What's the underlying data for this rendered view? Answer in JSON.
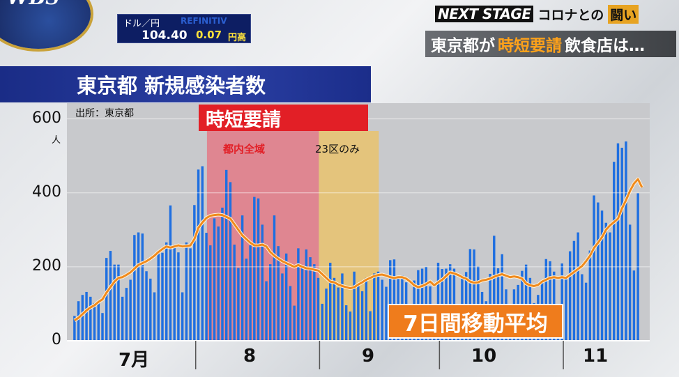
{
  "broadcaster": {
    "logo": "WBS"
  },
  "ticker": {
    "label": "ドル／円",
    "brand": "REFINITIV",
    "value": "104.40",
    "change": "0.07",
    "direction": "円高"
  },
  "segment": {
    "series": "NEXT STAGE",
    "topic": "コロナとの",
    "emphasis": "闘い"
  },
  "headline": {
    "prefix": "東京都が",
    "highlight": "時短要請",
    "suffix": "飲食店は…"
  },
  "chart_data": {
    "type": "bar",
    "title": "東京都 新規感染者数",
    "source": "出所：東京都",
    "ylabel": "人",
    "ylim": [
      0,
      620
    ],
    "yticks": [
      "0",
      "200",
      "400",
      "600"
    ],
    "xticks": [
      "7月",
      "8",
      "9",
      "10",
      "11"
    ],
    "xtick_days": [
      15,
      46,
      77,
      107,
      138
    ],
    "month_boundaries": [
      31,
      62,
      92,
      123
    ],
    "request": {
      "label": "時短要請",
      "periods": [
        {
          "label": "都内全域",
          "start_day": 34,
          "end_day": 62,
          "color": "#e86a78"
        },
        {
          "label": "23区のみ",
          "start_day": 62,
          "end_day": 77,
          "color": "#f0c25a"
        }
      ]
    },
    "moving_average_label": "7日間移動平均",
    "series": [
      {
        "kind": "daily",
        "values": [
          67,
          107,
          124,
          132,
          119,
          102,
          106,
          75,
          224,
          243,
          206,
          206,
          119,
          143,
          165,
          286,
          293,
          290,
          188,
          168,
          131,
          237,
          238,
          266,
          366,
          260,
          239,
          131,
          266,
          250,
          367,
          463,
          472,
          292,
          258,
          331,
          309,
          360,
          462,
          429,
          260,
          197,
          339,
          222,
          258,
          389,
          385,
          314,
          161,
          207,
          339,
          256,
          182,
          236,
          148,
          95,
          250,
          201,
          247,
          226,
          207,
          170,
          100,
          141,
          211,
          170,
          144,
          182,
          96,
          79,
          187,
          148,
          134,
          170,
          80,
          182,
          187,
          165,
          146,
          218,
          220,
          171,
          177,
          158,
          59,
          163,
          191,
          195,
          200,
          147,
          88,
          211,
          194,
          195,
          207,
          195,
          78,
          177,
          186,
          248,
          247,
          201,
          132,
          107,
          181,
          284,
          196,
          234,
          139,
          65,
          139,
          151,
          189,
          206,
          170,
          102,
          124,
          158,
          221,
          215,
          187,
          86,
          209,
          170,
          242,
          270,
          293,
          180,
          157,
          244,
          393,
          374,
          352,
          319,
          293,
          484,
          534,
          522,
          539,
          314,
          190,
          399
        ],
        "color": "#1f6fe0"
      },
      {
        "kind": "moving-average",
        "values": [
          55,
          62,
          72,
          82,
          90,
          96,
          105,
          112,
          130,
          145,
          160,
          170,
          172,
          178,
          185,
          195,
          205,
          210,
          215,
          222,
          230,
          240,
          248,
          255,
          252,
          255,
          258,
          255,
          256,
          258,
          275,
          305,
          320,
          332,
          338,
          340,
          341,
          340,
          335,
          330,
          315,
          300,
          285,
          275,
          265,
          258,
          258,
          260,
          255,
          240,
          230,
          222,
          215,
          210,
          205,
          200,
          205,
          200,
          196,
          195,
          192,
          190,
          180,
          170,
          160,
          158,
          152,
          148,
          145,
          142,
          145,
          152,
          158,
          165,
          170,
          175,
          178,
          179,
          176,
          172,
          170,
          172,
          172,
          168,
          160,
          150,
          145,
          148,
          153,
          160,
          150,
          158,
          165,
          175,
          185,
          182,
          178,
          172,
          168,
          160,
          157,
          158,
          163,
          165,
          168,
          173,
          177,
          180,
          176,
          172,
          174,
          172,
          168,
          155,
          150,
          148,
          151,
          160,
          165,
          170,
          172,
          170,
          172,
          170,
          178,
          186,
          194,
          202,
          215,
          230,
          251,
          265,
          280,
          300,
          312,
          321,
          330,
          358,
          380,
          405,
          425,
          437,
          415
        ],
        "color": "#f08a1c"
      }
    ]
  }
}
